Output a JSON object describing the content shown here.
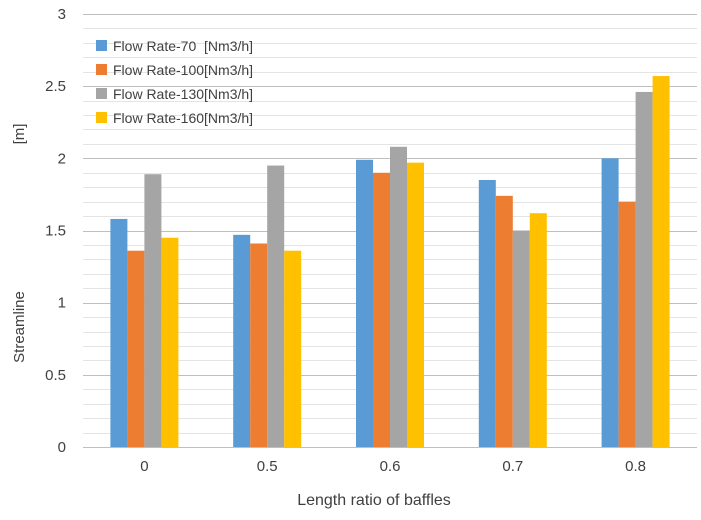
{
  "chart_data": {
    "type": "bar",
    "title": "",
    "xlabel": "Length ratio of  baffles",
    "ylabel_unit": "[m]",
    "ylabel": "Streamline",
    "categories": [
      "0",
      "0.5",
      "0.6",
      "0.7",
      "0.8"
    ],
    "ylim": [
      0,
      3
    ],
    "yticks": [
      0,
      0.5,
      1,
      1.5,
      2,
      2.5,
      3
    ],
    "ytick_labels": [
      "0",
      "0.5",
      "1",
      "1.5",
      "2",
      "2.5",
      "3"
    ],
    "minor_grid_step": 0.1,
    "grid": true,
    "legend_position": "top-left",
    "series": [
      {
        "name": "Flow Rate-70  [Nm3/h]",
        "color": "#5b9bd5",
        "values": [
          1.58,
          1.47,
          1.99,
          1.85,
          2.0
        ]
      },
      {
        "name": "Flow Rate-100[Nm3/h]",
        "color": "#ed7d31",
        "values": [
          1.36,
          1.41,
          1.9,
          1.74,
          1.7
        ]
      },
      {
        "name": "Flow Rate-130[Nm3/h]",
        "color": "#a5a5a5",
        "values": [
          1.89,
          1.95,
          2.08,
          1.5,
          2.46
        ]
      },
      {
        "name": "Flow Rate-160[Nm3/h]",
        "color": "#ffc000",
        "values": [
          1.45,
          1.36,
          1.97,
          1.62,
          2.57
        ]
      }
    ]
  }
}
